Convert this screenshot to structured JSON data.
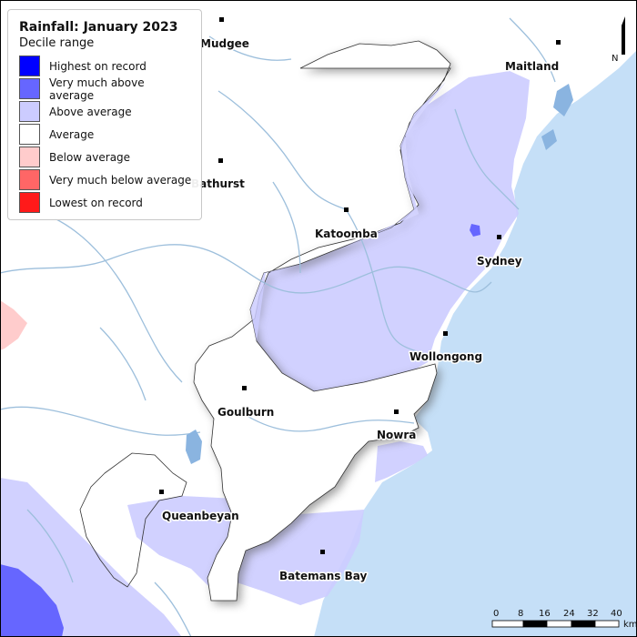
{
  "legend": {
    "title": "Rainfall: January 2023",
    "subtitle": "Decile range",
    "items": [
      {
        "label": "Highest on record",
        "color": "#0000ff"
      },
      {
        "label": "Very much above average",
        "color": "#6666ff"
      },
      {
        "label": "Above average",
        "color": "#ccccff"
      },
      {
        "label": "Average",
        "color": "#ffffff"
      },
      {
        "label": "Below average",
        "color": "#ffcccc"
      },
      {
        "label": "Very much below average",
        "color": "#ff6666"
      },
      {
        "label": "Lowest on record",
        "color": "#ff1a1a"
      }
    ]
  },
  "towns": [
    "Mudgee",
    "Maitland",
    "Bathurst",
    "Katoomba",
    "Sydney",
    "Wollongong",
    "Goulburn",
    "Nowra",
    "Queanbeyan",
    "Batemans Bay"
  ],
  "scale": {
    "ticks": [
      "0",
      "8",
      "16",
      "24",
      "32",
      "40"
    ],
    "unit": "km"
  },
  "north_label": "N",
  "colors": {
    "ocean": "#c5dff7",
    "river": "#9dbfdc",
    "lake": "#8ab4e0"
  }
}
